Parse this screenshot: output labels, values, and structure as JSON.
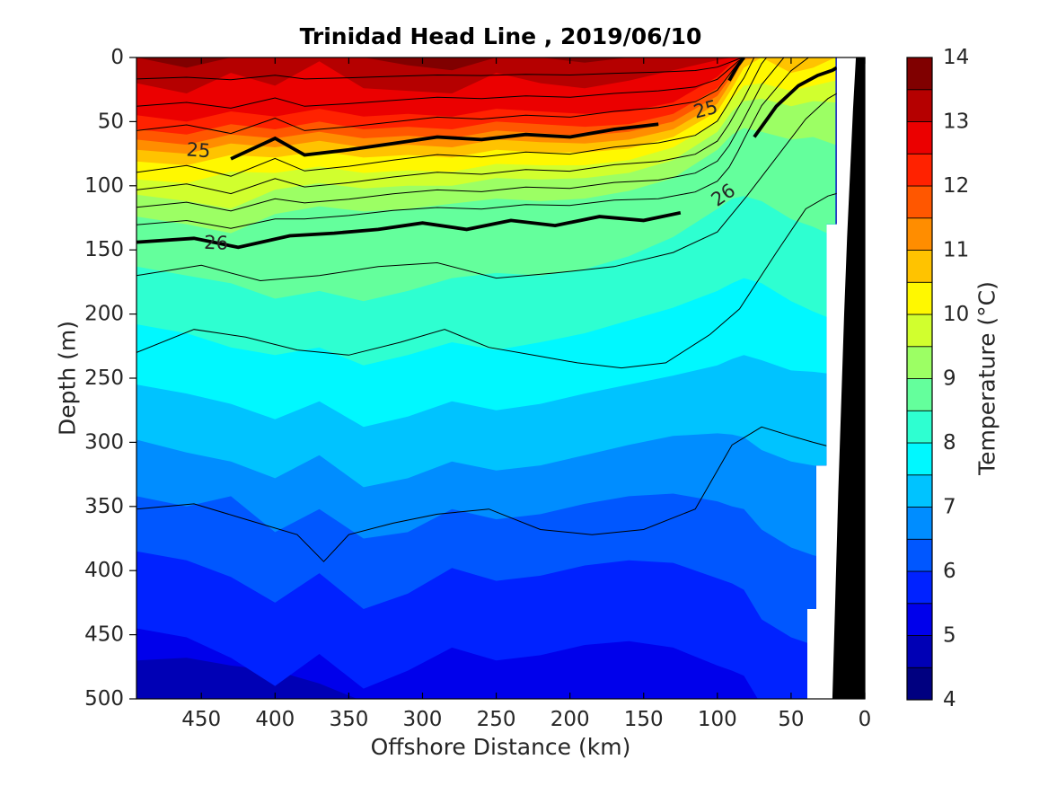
{
  "title": "Trinidad Head Line , 2019/06/10",
  "axes": {
    "xlabel": "Offshore Distance (km)",
    "ylabel": "Depth (m)",
    "xlim": [
      494,
      0
    ],
    "ylim": [
      0,
      500
    ],
    "x_ticks": [
      450,
      400,
      350,
      300,
      250,
      200,
      150,
      100,
      50,
      0
    ],
    "y_ticks": [
      0,
      50,
      100,
      150,
      200,
      250,
      300,
      350,
      400,
      450,
      500
    ],
    "x_reversed": true
  },
  "colorbar": {
    "label": "Temperature (°C)",
    "vmin": 4,
    "vmax": 14,
    "step": 0.5,
    "ticks": [
      4,
      5,
      6,
      7,
      8,
      9,
      10,
      11,
      12,
      13,
      14
    ],
    "colors": [
      "#000080",
      "#0000B5",
      "#0000EB",
      "#0022FF",
      "#0057FF",
      "#008DFF",
      "#00C3FF",
      "#00F8FF",
      "#2EFFD1",
      "#64FF9C",
      "#9CFF64",
      "#D1FF2E",
      "#FFF800",
      "#FFC300",
      "#FF8D00",
      "#FF5700",
      "#FF2200",
      "#EB0000",
      "#B50000",
      "#800000"
    ]
  },
  "chart_data": {
    "type": "filled_contour_section",
    "title": "Trinidad Head Line , 2019/06/10",
    "xlabel": "Offshore Distance (km)",
    "ylabel": "Depth (m)",
    "zlabel": "Temperature (°C)",
    "stations_km": [
      494,
      460,
      430,
      400,
      370,
      340,
      310,
      280,
      250,
      220,
      190,
      160,
      130,
      100,
      90,
      82,
      70,
      50,
      35,
      20
    ],
    "isotherms": [
      {
        "level": 5.0,
        "depths": [
          470,
          468,
          474,
          478,
          488,
          502,
          515,
          512,
          515,
          518,
          515,
          518,
          520,
          520,
          520,
          520,
          520,
          520,
          520,
          520
        ]
      },
      {
        "level": 5.5,
        "depths": [
          445,
          452,
          468,
          490,
          465,
          492,
          478,
          460,
          470,
          466,
          458,
          455,
          460,
          474,
          478,
          482,
          505,
          520,
          520,
          520
        ]
      },
      {
        "level": 6.0,
        "depths": [
          385,
          392,
          405,
          425,
          402,
          430,
          418,
          398,
          408,
          404,
          396,
          392,
          394,
          406,
          410,
          415,
          438,
          452,
          458,
          462
        ]
      },
      {
        "level": 6.5,
        "depths": [
          342,
          350,
          342,
          370,
          352,
          375,
          370,
          352,
          360,
          356,
          348,
          342,
          340,
          346,
          350,
          352,
          368,
          382,
          388,
          392
        ]
      },
      {
        "level": 7.0,
        "depths": [
          298,
          308,
          315,
          328,
          310,
          335,
          328,
          315,
          322,
          318,
          310,
          302,
          295,
          293,
          294,
          296,
          306,
          315,
          318,
          321
        ]
      },
      {
        "level": 7.5,
        "depths": [
          255,
          262,
          270,
          282,
          268,
          288,
          280,
          268,
          275,
          270,
          262,
          255,
          248,
          240,
          235,
          232,
          236,
          244,
          245,
          247
        ]
      },
      {
        "level": 8.0,
        "depths": [
          208,
          215,
          226,
          232,
          226,
          240,
          232,
          222,
          228,
          222,
          215,
          205,
          195,
          182,
          176,
          172,
          176,
          190,
          198,
          205
        ]
      },
      {
        "level": 8.5,
        "depths": [
          163,
          170,
          176,
          188,
          182,
          190,
          182,
          172,
          168,
          170,
          165,
          155,
          140,
          118,
          110,
          108,
          112,
          126,
          132,
          140
        ]
      },
      {
        "level": 9.0,
        "depths": [
          124,
          130,
          137,
          122,
          116,
          120,
          118,
          114,
          110,
          112,
          110,
          104,
          94,
          72,
          60,
          55,
          58,
          64,
          62,
          68
        ]
      },
      {
        "level": 9.5,
        "depths": [
          107,
          112,
          118,
          103,
          98,
          102,
          100,
          100,
          94,
          95,
          94,
          90,
          80,
          58,
          42,
          34,
          32,
          38,
          34,
          35
        ]
      },
      {
        "level": 10.0,
        "depths": [
          95,
          98,
          89,
          90,
          85,
          90,
          88,
          89,
          83,
          84,
          84,
          80,
          70,
          50,
          32,
          22,
          20,
          26,
          22,
          18
        ]
      },
      {
        "level": 10.5,
        "depths": [
          81,
          84,
          76,
          78,
          73,
          78,
          76,
          78,
          72,
          74,
          74,
          71,
          62,
          42,
          24,
          8,
          0,
          12,
          8,
          0
        ]
      },
      {
        "level": 11.0,
        "depths": [
          72,
          75,
          67,
          70,
          65,
          70,
          68,
          70,
          64,
          66,
          67,
          64,
          56,
          36,
          18,
          2,
          0,
          0,
          0,
          0
        ]
      },
      {
        "level": 11.5,
        "depths": [
          64,
          68,
          60,
          63,
          58,
          63,
          61,
          63,
          57,
          59,
          61,
          58,
          50,
          30,
          14,
          0,
          0,
          0,
          0,
          0
        ]
      },
      {
        "level": 12.0,
        "depths": [
          56,
          60,
          52,
          56,
          50,
          56,
          54,
          56,
          50,
          52,
          54,
          52,
          44,
          24,
          10,
          0,
          0,
          0,
          0,
          0
        ]
      },
      {
        "level": 12.5,
        "depths": [
          45,
          50,
          42,
          46,
          40,
          46,
          44,
          46,
          40,
          42,
          44,
          42,
          35,
          15,
          4,
          0,
          0,
          0,
          0,
          0
        ]
      },
      {
        "level": 13.0,
        "depths": [
          20,
          28,
          12,
          22,
          3,
          24,
          26,
          28,
          12,
          20,
          24,
          18,
          10,
          2,
          0,
          0,
          0,
          0,
          0,
          0
        ]
      },
      {
        "level": 13.5,
        "depths": [
          0,
          8,
          0,
          0,
          0,
          0,
          6,
          10,
          0,
          0,
          4,
          0,
          0,
          0,
          0,
          0,
          0,
          0,
          0,
          0
        ]
      }
    ],
    "density_contours": {
      "thick": [
        {
          "level": 25,
          "km": [
            494,
            460,
            430,
            400,
            380,
            350,
            320,
            290,
            260,
            230,
            200,
            170,
            140,
            115,
            100,
            92,
            86,
            82,
            70,
            50,
            30,
            20
          ],
          "depth": [
            76,
            70,
            79,
            63,
            76,
            72,
            67,
            62,
            64,
            60,
            62,
            56,
            52,
            46,
            34,
            18,
            6,
            0,
            -28,
            -58,
            -88,
            -105
          ],
          "labels": [
            {
              "text": "25",
              "km": 452,
              "rot": 4
            },
            {
              "text": "25",
              "km": 108,
              "rot": -15
            }
          ]
        },
        {
          "level": 26,
          "km": [
            494,
            455,
            425,
            390,
            360,
            330,
            300,
            270,
            240,
            210,
            180,
            150,
            125,
            105,
            90,
            75,
            60,
            45,
            32,
            22,
            19
          ],
          "depth": [
            144,
            141,
            148,
            139,
            137,
            134,
            129,
            134,
            127,
            131,
            124,
            127,
            121,
            118,
            100,
            62,
            38,
            22,
            14,
            10,
            8
          ],
          "labels": [
            {
              "text": "26",
              "km": 440,
              "rot": 2
            },
            {
              "text": "26",
              "km": 96,
              "rot": -35
            }
          ]
        }
      ],
      "thin_fractions": [
        -0.78,
        -0.5,
        -0.25,
        0.2,
        0.4,
        0.6,
        0.8
      ],
      "thin_deep": [
        {
          "level": 26.2,
          "km": [
            494,
            450,
            410,
            370,
            330,
            290,
            250,
            210,
            170,
            130,
            100,
            80,
            60,
            40,
            25,
            19
          ],
          "depth": [
            170,
            162,
            174,
            170,
            163,
            160,
            172,
            168,
            163,
            152,
            136,
            108,
            78,
            48,
            32,
            28
          ]
        },
        {
          "level": 26.4,
          "km": [
            494,
            455,
            420,
            385,
            350,
            315,
            285,
            255,
            225,
            195,
            165,
            135,
            105,
            85,
            60,
            40,
            25,
            19
          ],
          "depth": [
            230,
            212,
            218,
            228,
            232,
            222,
            212,
            226,
            232,
            238,
            242,
            238,
            216,
            196,
            152,
            118,
            108,
            106
          ]
        },
        {
          "level": 26.6,
          "km": [
            494,
            455,
            420,
            385,
            367,
            350,
            320,
            290,
            255,
            220,
            185,
            150,
            115,
            90,
            70,
            50,
            35,
            25,
            19
          ],
          "depth": [
            352,
            348,
            360,
            372,
            393,
            372,
            363,
            356,
            352,
            368,
            372,
            368,
            352,
            302,
            288,
            295,
            300,
            303,
            305
          ]
        }
      ]
    },
    "data_edge": [
      [
        19,
        0
      ],
      [
        19,
        130
      ],
      [
        26,
        130
      ],
      [
        26,
        318
      ],
      [
        33,
        318
      ],
      [
        33,
        430
      ],
      [
        39,
        430
      ],
      [
        39,
        500
      ]
    ],
    "coast_polygon": [
      [
        6,
        0
      ],
      [
        8,
        40
      ],
      [
        10,
        90
      ],
      [
        12,
        140
      ],
      [
        14,
        200
      ],
      [
        16,
        270
      ],
      [
        18,
        340
      ],
      [
        20,
        420
      ],
      [
        22,
        500
      ]
    ]
  }
}
